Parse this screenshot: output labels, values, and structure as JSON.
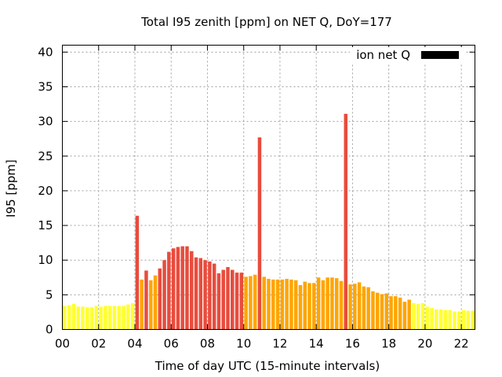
{
  "chart_data": {
    "type": "bar",
    "title": "Total I95 zenith [ppm] on NET Q, DoY=177",
    "xlabel": "Time of day UTC (15-minute intervals)",
    "ylabel": "I95 [ppm]",
    "xlim": [
      0,
      22.75
    ],
    "ylim": [
      0,
      41
    ],
    "x_ticks": [
      0,
      2,
      4,
      6,
      8,
      10,
      12,
      14,
      16,
      18,
      20,
      22
    ],
    "x_tick_labels": [
      "00",
      "02",
      "04",
      "06",
      "08",
      "10",
      "12",
      "14",
      "16",
      "18",
      "20",
      "22"
    ],
    "y_ticks": [
      0,
      5,
      10,
      15,
      20,
      25,
      30,
      35,
      40
    ],
    "y_tick_labels": [
      "0",
      "5",
      "10",
      "15",
      "20",
      "25",
      "30",
      "35",
      "40"
    ],
    "grid": true,
    "legend": {
      "label": "ion net Q",
      "position": "top-right",
      "color": "#000000"
    },
    "color_thresholds": {
      "yellow": "#ffff33",
      "orange": "#ffa500",
      "red": "#e84c3d",
      "orange_from": 4,
      "red_from": 8
    },
    "interval_hours": 0.25,
    "values": [
      3.4,
      3.5,
      3.7,
      3.3,
      3.3,
      3.2,
      3.2,
      3.4,
      3.3,
      3.4,
      3.4,
      3.4,
      3.4,
      3.4,
      3.6,
      3.8,
      16.4,
      7.2,
      8.5,
      7.1,
      7.8,
      8.8,
      10.0,
      11.2,
      11.7,
      11.9,
      12.0,
      12.0,
      11.3,
      10.4,
      10.3,
      10.0,
      9.8,
      9.5,
      8.1,
      8.6,
      9.0,
      8.6,
      8.2,
      8.2,
      7.6,
      7.7,
      7.9,
      27.7,
      7.6,
      7.3,
      7.2,
      7.2,
      7.2,
      7.3,
      7.2,
      7.1,
      6.4,
      6.9,
      6.7,
      6.7,
      7.5,
      7.1,
      7.5,
      7.5,
      7.4,
      7.0,
      31.1,
      6.5,
      6.6,
      6.8,
      6.2,
      6.1,
      5.5,
      5.3,
      5.1,
      5.2,
      4.8,
      4.8,
      4.6,
      4.0,
      4.3,
      3.8,
      3.7,
      3.8,
      3.3,
      3.1,
      2.9,
      2.9,
      2.8,
      2.8,
      2.6,
      2.6,
      2.8,
      2.7,
      2.7
    ]
  }
}
